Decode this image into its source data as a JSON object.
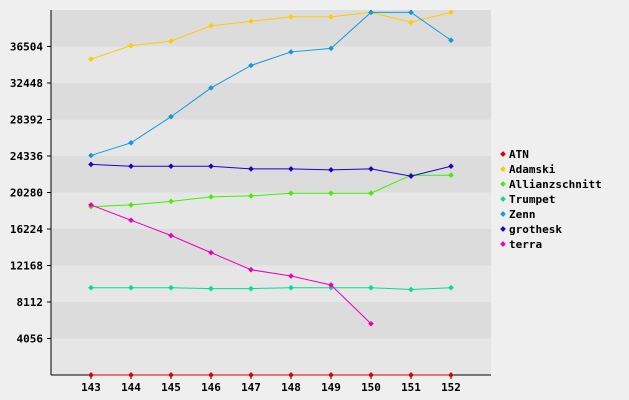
{
  "chart_data": {
    "type": "line",
    "x": [
      "143",
      "144",
      "145",
      "146",
      "147",
      "148",
      "149",
      "150",
      "151",
      "152"
    ],
    "y_ticks": [
      4056,
      8112,
      12168,
      16224,
      20280,
      24336,
      28392,
      32448,
      36504
    ],
    "ylim": [
      0,
      40560
    ],
    "grid": "horizontal alternating bands",
    "legend_position": "right",
    "title": "",
    "xlabel": "",
    "ylabel": "",
    "series": [
      {
        "name": "ATN",
        "color": "#dd0000",
        "values": [
          0,
          0,
          0,
          0,
          0,
          0,
          0,
          0,
          0,
          0
        ]
      },
      {
        "name": "Adamski",
        "color": "#ffcc00",
        "values": [
          35100,
          36600,
          37100,
          38800,
          39300,
          39800,
          39800,
          40300,
          39200,
          40300
        ]
      },
      {
        "name": "Allianzschnitt",
        "color": "#44ee00",
        "values": [
          18700,
          18900,
          19300,
          19800,
          19900,
          20200,
          20200,
          20200,
          22200,
          22200
        ]
      },
      {
        "name": "Trumpet",
        "color": "#00dd99",
        "values": [
          9700,
          9700,
          9700,
          9600,
          9600,
          9700,
          9700,
          9700,
          9500,
          9700
        ]
      },
      {
        "name": "Zenn",
        "color": "#1199dd",
        "values": [
          24400,
          25800,
          28700,
          31900,
          34400,
          35900,
          36300,
          40300,
          40300,
          37200
        ]
      },
      {
        "name": "grothesk",
        "color": "#2200cc",
        "values": [
          23400,
          23200,
          23200,
          23200,
          22900,
          22900,
          22800,
          22900,
          22100,
          23200
        ]
      },
      {
        "name": "terra",
        "color": "#ee00bb",
        "values": [
          18900,
          17200,
          15500,
          13600,
          11700,
          11000,
          10000,
          5700,
          null,
          null
        ]
      }
    ]
  }
}
